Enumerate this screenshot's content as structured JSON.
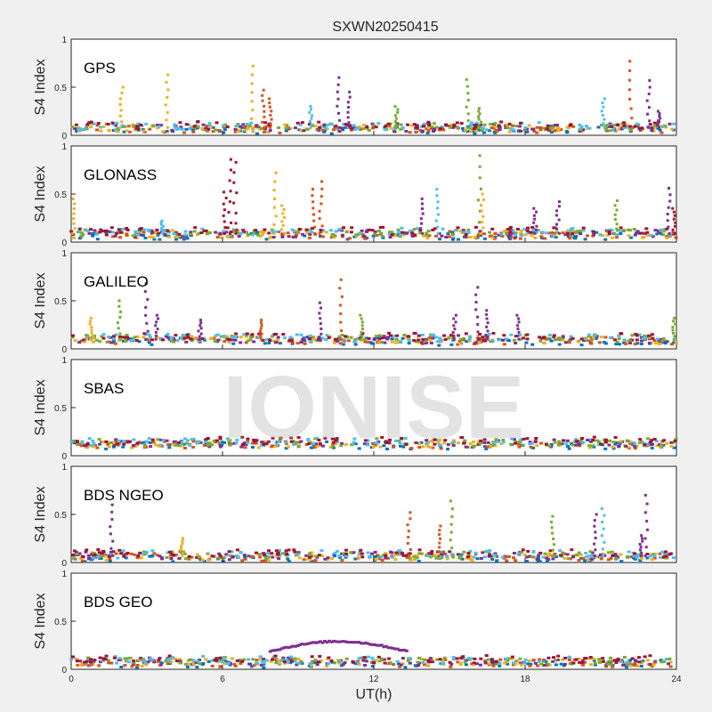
{
  "chart_data": {
    "type": "scatter",
    "title": "SXWN20250415",
    "xlabel": "UT(h)",
    "xlim": [
      0,
      24
    ],
    "x_ticks": [
      "0",
      "6",
      "12",
      "18",
      "24"
    ],
    "ylabel": "S4 Index",
    "ylim": [
      0,
      1
    ],
    "y_ticks": [
      "0",
      "0.5",
      "1"
    ],
    "watermark": "IONISE",
    "series_colors": [
      "#0072BD",
      "#D95319",
      "#EDB120",
      "#7E2F8E",
      "#77AC30",
      "#4DBEEE",
      "#A2142F"
    ],
    "panels": [
      {
        "label": "GPS",
        "baseline": 0.08,
        "spikes": [
          {
            "x": 2.0,
            "y": 0.5,
            "c": 2
          },
          {
            "x": 3.8,
            "y": 0.63,
            "c": 2
          },
          {
            "x": 7.2,
            "y": 0.72,
            "c": 2
          },
          {
            "x": 7.6,
            "y": 0.47,
            "c": 1
          },
          {
            "x": 7.9,
            "y": 0.38,
            "c": 1
          },
          {
            "x": 9.5,
            "y": 0.3,
            "c": 5
          },
          {
            "x": 10.6,
            "y": 0.6,
            "c": 3
          },
          {
            "x": 11.0,
            "y": 0.45,
            "c": 3
          },
          {
            "x": 12.9,
            "y": 0.3,
            "c": 4
          },
          {
            "x": 15.7,
            "y": 0.58,
            "c": 4
          },
          {
            "x": 16.2,
            "y": 0.28,
            "c": 4
          },
          {
            "x": 21.1,
            "y": 0.38,
            "c": 5
          },
          {
            "x": 22.2,
            "y": 0.77,
            "c": 1
          },
          {
            "x": 22.9,
            "y": 0.57,
            "c": 3
          },
          {
            "x": 23.3,
            "y": 0.25,
            "c": 3
          }
        ]
      },
      {
        "label": "GLONASS",
        "baseline": 0.09,
        "spikes": [
          {
            "x": 0.1,
            "y": 0.45,
            "c": 2
          },
          {
            "x": 3.6,
            "y": 0.22,
            "c": 5
          },
          {
            "x": 6.1,
            "y": 0.52,
            "c": 6
          },
          {
            "x": 6.3,
            "y": 0.86,
            "c": 6
          },
          {
            "x": 6.5,
            "y": 0.83,
            "c": 6
          },
          {
            "x": 8.1,
            "y": 0.72,
            "c": 2
          },
          {
            "x": 8.4,
            "y": 0.38,
            "c": 2
          },
          {
            "x": 9.6,
            "y": 0.55,
            "c": 1
          },
          {
            "x": 9.9,
            "y": 0.63,
            "c": 1
          },
          {
            "x": 13.9,
            "y": 0.45,
            "c": 3
          },
          {
            "x": 14.5,
            "y": 0.55,
            "c": 5
          },
          {
            "x": 16.2,
            "y": 0.9,
            "c": 4
          },
          {
            "x": 16.3,
            "y": 0.5,
            "c": 2
          },
          {
            "x": 18.4,
            "y": 0.35,
            "c": 3
          },
          {
            "x": 19.3,
            "y": 0.42,
            "c": 3
          },
          {
            "x": 21.6,
            "y": 0.43,
            "c": 4
          },
          {
            "x": 23.7,
            "y": 0.56,
            "c": 3
          },
          {
            "x": 23.9,
            "y": 0.35,
            "c": 6
          }
        ]
      },
      {
        "label": "GALILEO",
        "baseline": 0.1,
        "spikes": [
          {
            "x": 0.8,
            "y": 0.32,
            "c": 2
          },
          {
            "x": 1.9,
            "y": 0.5,
            "c": 4
          },
          {
            "x": 3.0,
            "y": 0.68,
            "c": 3
          },
          {
            "x": 3.4,
            "y": 0.35,
            "c": 3
          },
          {
            "x": 5.1,
            "y": 0.3,
            "c": 3
          },
          {
            "x": 7.5,
            "y": 0.3,
            "c": 1
          },
          {
            "x": 9.9,
            "y": 0.48,
            "c": 3
          },
          {
            "x": 10.7,
            "y": 0.72,
            "c": 1
          },
          {
            "x": 11.5,
            "y": 0.35,
            "c": 4
          },
          {
            "x": 15.2,
            "y": 0.35,
            "c": 3
          },
          {
            "x": 16.1,
            "y": 0.64,
            "c": 3
          },
          {
            "x": 16.5,
            "y": 0.4,
            "c": 3
          },
          {
            "x": 17.7,
            "y": 0.35,
            "c": 3
          },
          {
            "x": 23.9,
            "y": 0.32,
            "c": 4
          }
        ]
      },
      {
        "label": "SBAS",
        "baseline": 0.13,
        "spikes": []
      },
      {
        "label": "BDS NGEO",
        "baseline": 0.07,
        "spikes": [
          {
            "x": 1.6,
            "y": 0.6,
            "c": 3
          },
          {
            "x": 4.4,
            "y": 0.25,
            "c": 2
          },
          {
            "x": 13.4,
            "y": 0.52,
            "c": 1
          },
          {
            "x": 14.6,
            "y": 0.38,
            "c": 1
          },
          {
            "x": 15.1,
            "y": 0.64,
            "c": 4
          },
          {
            "x": 19.1,
            "y": 0.48,
            "c": 4
          },
          {
            "x": 20.8,
            "y": 0.5,
            "c": 3
          },
          {
            "x": 21.1,
            "y": 0.56,
            "c": 5
          },
          {
            "x": 22.8,
            "y": 0.7,
            "c": 3
          },
          {
            "x": 22.6,
            "y": 0.28,
            "c": 3
          }
        ]
      },
      {
        "label": "BDS GEO",
        "baseline": 0.08,
        "spikes": [],
        "arc": {
          "x0": 7.9,
          "x1": 13.3,
          "ybase": 0.19,
          "ypeak": 0.29,
          "c": 3
        }
      }
    ]
  }
}
